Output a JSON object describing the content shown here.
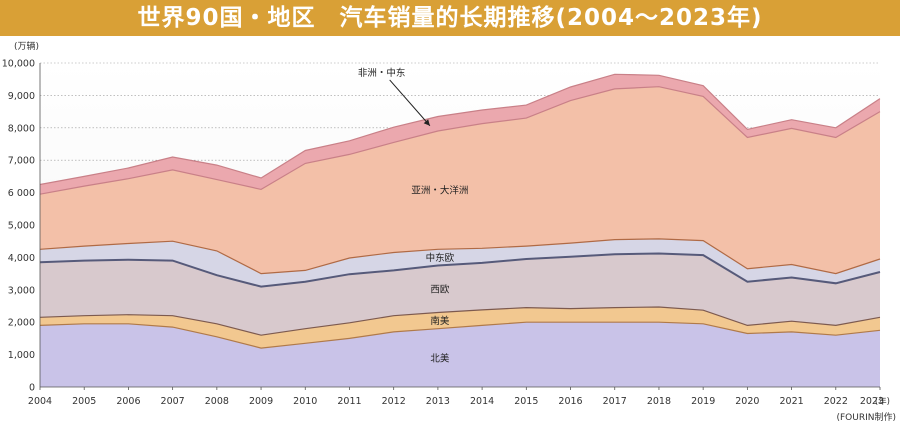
{
  "chart_data": {
    "type": "area",
    "stacked": true,
    "title": "世界90国・地区　汽车销量的长期推移(2004～2023年)",
    "unit_label": "(万辆)",
    "x_unit": "(年)",
    "source_note": "(FOURIN制作)",
    "ylim": [
      0,
      10000
    ],
    "y_ticks": [
      "0",
      "1,000",
      "2,000",
      "3,000",
      "4,000",
      "5,000",
      "6 000",
      "7,000",
      "8,000",
      "9,000",
      "10,000"
    ],
    "x": [
      "2004",
      "2005",
      "2006",
      "2007",
      "2008",
      "2009",
      "2010",
      "2011",
      "2012",
      "2013",
      "2014",
      "2015",
      "2016",
      "2017",
      "2018",
      "2019",
      "2020",
      "2021",
      "2022",
      "2023"
    ],
    "grid": true,
    "series": [
      {
        "name": "北美",
        "color": "#c9c3e8",
        "values": [
          1900,
          1950,
          1950,
          1850,
          1550,
          1200,
          1350,
          1500,
          1700,
          1800,
          1900,
          2000,
          2000,
          2000,
          2000,
          1950,
          1650,
          1700,
          1600,
          1750
        ]
      },
      {
        "name": "南美",
        "color": "#f2c890",
        "values": [
          250,
          250,
          280,
          350,
          400,
          400,
          450,
          480,
          500,
          500,
          480,
          450,
          420,
          450,
          470,
          420,
          250,
          330,
          300,
          400
        ]
      },
      {
        "name": "西欧",
        "color": "#d8c9cd",
        "values": [
          1700,
          1700,
          1700,
          1700,
          1500,
          1500,
          1450,
          1500,
          1400,
          1450,
          1450,
          1500,
          1600,
          1650,
          1650,
          1700,
          1350,
          1350,
          1300,
          1400
        ]
      },
      {
        "name": "中东欧",
        "color": "#d6d6e6",
        "values": [
          400,
          450,
          500,
          600,
          750,
          400,
          350,
          500,
          550,
          500,
          450,
          400,
          420,
          450,
          450,
          450,
          400,
          400,
          300,
          400
        ]
      },
      {
        "name": "亚洲・大洋洲",
        "color": "#f3c0a8",
        "values": [
          1700,
          1850,
          2000,
          2200,
          2200,
          2600,
          3300,
          3200,
          3400,
          3650,
          3850,
          3950,
          4400,
          4650,
          4700,
          4450,
          4050,
          4200,
          4200,
          4550
        ]
      },
      {
        "name": "非洲・中东",
        "color": "#eba8ae",
        "values": [
          300,
          300,
          330,
          400,
          450,
          350,
          400,
          420,
          470,
          450,
          420,
          400,
          420,
          450,
          350,
          330,
          250,
          270,
          300,
          400
        ]
      }
    ],
    "annotations": [
      {
        "text": "非洲・中东",
        "points_to": "非洲・中东"
      }
    ]
  }
}
